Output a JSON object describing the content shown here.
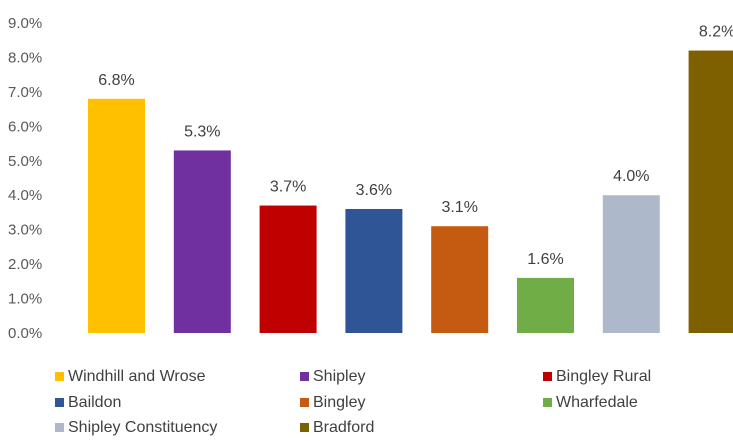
{
  "chart_data": {
    "type": "bar",
    "title": "",
    "xlabel": "",
    "ylabel": "",
    "ylim": [
      0,
      9
    ],
    "yticks": [
      "0.0%",
      "1.0%",
      "2.0%",
      "3.0%",
      "4.0%",
      "5.0%",
      "6.0%",
      "7.0%",
      "8.0%",
      "9.0%"
    ],
    "grid": false,
    "legend_position": "bottom",
    "series": [
      {
        "name": "Windhill and Wrose",
        "value": 6.8,
        "label": "6.8%",
        "color": "#FFC000"
      },
      {
        "name": "Shipley",
        "value": 5.3,
        "label": "5.3%",
        "color": "#7030A0"
      },
      {
        "name": "Bingley Rural",
        "value": 3.7,
        "label": "3.7%",
        "color": "#C00000"
      },
      {
        "name": "Baildon",
        "value": 3.6,
        "label": "3.6%",
        "color": "#2F5597"
      },
      {
        "name": "Bingley",
        "value": 3.1,
        "label": "3.1%",
        "color": "#C55A11"
      },
      {
        "name": "Wharfedale",
        "value": 1.6,
        "label": "1.6%",
        "color": "#70AD47"
      },
      {
        "name": "Shipley Constituency",
        "value": 4.0,
        "label": "4.0%",
        "color": "#ADB9CA"
      },
      {
        "name": "Bradford",
        "value": 8.2,
        "label": "8.2%",
        "color": "#7F6000"
      }
    ]
  }
}
